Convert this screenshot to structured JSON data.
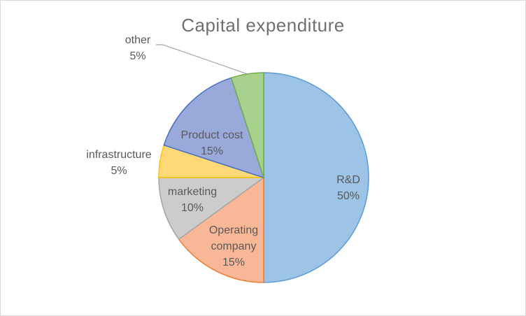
{
  "chart_data": {
    "type": "pie",
    "title": "Capital expenditure",
    "slices": [
      {
        "label": "R&D",
        "value": 50,
        "pct_label": "50%",
        "color": "#9dc3e6",
        "stroke": "#5b9bd5"
      },
      {
        "label": "Operating company",
        "value": 15,
        "pct_label": "15%",
        "color": "#f8b898",
        "stroke": "#ed7d31"
      },
      {
        "label": "marketing",
        "value": 10,
        "pct_label": "10%",
        "color": "#cccccc",
        "stroke": "#a5a5a5"
      },
      {
        "label": "infrastructure",
        "value": 5,
        "pct_label": "5%",
        "color": "#ffd978",
        "stroke": "#ffc000"
      },
      {
        "label": "Product cost",
        "value": 15,
        "pct_label": "15%",
        "color": "#99a9da",
        "stroke": "#4472c4"
      },
      {
        "label": "other",
        "value": 5,
        "pct_label": "5%",
        "color": "#a9d18e",
        "stroke": "#70ad47"
      }
    ]
  }
}
